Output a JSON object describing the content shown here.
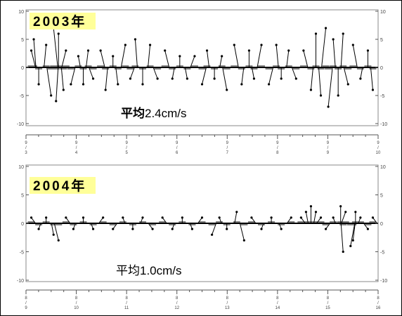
{
  "chart_data": [
    {
      "type": "scatter",
      "title": "2003年",
      "annotation": "平均2.4cm/s",
      "annotation_prefix": "平均",
      "annotation_value": "2.4cm/s",
      "ylim": [
        -10,
        10
      ],
      "yticks": [
        "10",
        "5",
        "0",
        "-5",
        "-10"
      ],
      "xticks": [
        {
          "top": "9",
          "bottom": "3"
        },
        {
          "top": "9",
          "bottom": "4"
        },
        {
          "top": "9",
          "bottom": "5"
        },
        {
          "top": "9",
          "bottom": "6"
        },
        {
          "top": "9",
          "bottom": "7"
        },
        {
          "top": "9",
          "bottom": "8"
        },
        {
          "top": "9",
          "bottom": "9"
        },
        {
          "top": "9",
          "bottom": "10"
        }
      ],
      "xrange_days": [
        3,
        10
      ],
      "mean_speed_cm_s": 2.4,
      "series": [
        {
          "values": [
            [
              3.05,
              3
            ],
            [
              3.1,
              5
            ],
            [
              3.2,
              -3
            ],
            [
              3.35,
              4
            ],
            [
              3.45,
              -5
            ],
            [
              3.5,
              7
            ],
            [
              3.55,
              -6
            ],
            [
              3.6,
              6
            ],
            [
              3.7,
              -4
            ],
            [
              3.75,
              3
            ],
            [
              3.85,
              -3
            ],
            [
              4.0,
              2
            ],
            [
              4.1,
              -3
            ],
            [
              4.2,
              3
            ],
            [
              4.3,
              -2
            ],
            [
              4.45,
              3
            ],
            [
              4.55,
              -4
            ],
            [
              4.7,
              2
            ],
            [
              4.8,
              -3
            ],
            [
              4.95,
              4
            ],
            [
              5.05,
              -2
            ],
            [
              5.15,
              5
            ],
            [
              5.3,
              -3
            ],
            [
              5.45,
              4
            ],
            [
              5.6,
              -2
            ],
            [
              5.75,
              3
            ],
            [
              5.9,
              -2
            ],
            [
              6.05,
              2
            ],
            [
              6.2,
              -2
            ],
            [
              6.35,
              2
            ],
            [
              6.5,
              -3
            ],
            [
              6.6,
              3
            ],
            [
              6.75,
              -2
            ],
            [
              6.9,
              2
            ],
            [
              7.0,
              -4
            ],
            [
              7.15,
              4
            ],
            [
              7.3,
              -3
            ],
            [
              7.45,
              3
            ],
            [
              7.55,
              -2
            ],
            [
              7.7,
              4
            ],
            [
              7.85,
              -3
            ],
            [
              8.0,
              4
            ],
            [
              8.1,
              -2
            ],
            [
              8.25,
              3
            ],
            [
              8.4,
              -2
            ],
            [
              8.55,
              3
            ],
            [
              8.7,
              -4
            ],
            [
              8.8,
              6
            ],
            [
              8.9,
              -5
            ],
            [
              9.0,
              7
            ],
            [
              9.05,
              -7
            ],
            [
              9.15,
              5
            ],
            [
              9.25,
              -5
            ],
            [
              9.35,
              6
            ],
            [
              9.45,
              -3
            ],
            [
              9.55,
              4
            ],
            [
              9.7,
              -2
            ],
            [
              9.85,
              3
            ],
            [
              9.95,
              -4
            ]
          ]
        }
      ]
    },
    {
      "type": "scatter",
      "title": "2004年",
      "annotation": "平均1.0cm/s",
      "annotation_prefix": "平均",
      "annotation_value": "1.0cm/s",
      "ylim": [
        -10,
        10
      ],
      "yticks": [
        "10",
        "5",
        "0",
        "-5",
        "-10"
      ],
      "xticks": [
        {
          "top": "8",
          "bottom": "9"
        },
        {
          "top": "8",
          "bottom": "10"
        },
        {
          "top": "8",
          "bottom": "11"
        },
        {
          "top": "8",
          "bottom": "12"
        },
        {
          "top": "8",
          "bottom": "13"
        },
        {
          "top": "8",
          "bottom": "14"
        },
        {
          "top": "8",
          "bottom": "15"
        },
        {
          "top": "8",
          "bottom": "16"
        }
      ],
      "xrange_days": [
        9,
        16
      ],
      "mean_speed_cm_s": 1.0,
      "series": [
        {
          "values": [
            [
              9.05,
              1
            ],
            [
              9.2,
              -1
            ],
            [
              9.35,
              1
            ],
            [
              9.5,
              -2
            ],
            [
              9.6,
              -3
            ],
            [
              9.75,
              1
            ],
            [
              9.9,
              -1
            ],
            [
              10.1,
              1
            ],
            [
              10.3,
              -1
            ],
            [
              10.5,
              1
            ],
            [
              10.7,
              -1
            ],
            [
              10.9,
              1
            ],
            [
              11.1,
              -1
            ],
            [
              11.3,
              1
            ],
            [
              11.5,
              -1
            ],
            [
              11.7,
              1
            ],
            [
              11.9,
              -1
            ],
            [
              12.1,
              1
            ],
            [
              12.3,
              -1
            ],
            [
              12.5,
              1
            ],
            [
              12.7,
              -2
            ],
            [
              12.85,
              1
            ],
            [
              13.0,
              -1
            ],
            [
              13.2,
              2
            ],
            [
              13.35,
              -3
            ],
            [
              13.5,
              1
            ],
            [
              13.7,
              -1
            ],
            [
              13.9,
              1
            ],
            [
              14.1,
              -1
            ],
            [
              14.3,
              1
            ],
            [
              14.5,
              1
            ],
            [
              14.6,
              2
            ],
            [
              14.7,
              3
            ],
            [
              14.8,
              2
            ],
            [
              14.9,
              1
            ],
            [
              15.0,
              -1
            ],
            [
              15.15,
              1
            ],
            [
              15.3,
              3
            ],
            [
              15.35,
              -5
            ],
            [
              15.4,
              2
            ],
            [
              15.5,
              -4
            ],
            [
              15.55,
              -3
            ],
            [
              15.6,
              2
            ],
            [
              15.7,
              1
            ],
            [
              15.85,
              -1
            ],
            [
              15.95,
              1
            ]
          ]
        }
      ]
    }
  ]
}
